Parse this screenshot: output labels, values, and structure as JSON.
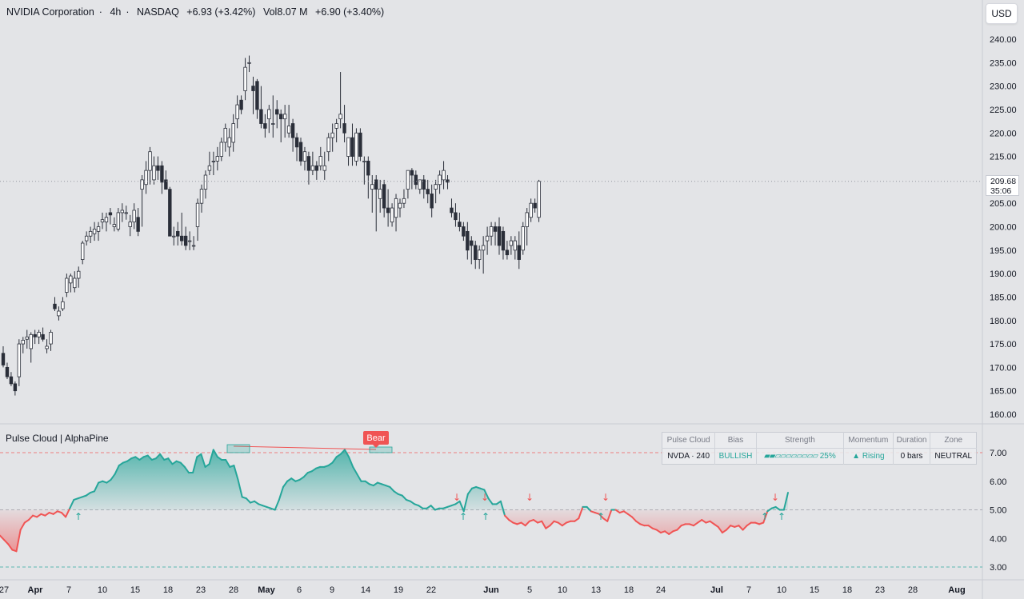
{
  "header": {
    "symbol": "NVIDIA Corporation",
    "interval": "4h",
    "exchange": "NASDAQ",
    "change": "+6.93 (+3.42%)",
    "volume_label": "Vol",
    "volume": "8.07 M",
    "volume_change": "+6.90 (+3.40%)",
    "separator": "·"
  },
  "currency": "USD",
  "last_price": "209.68",
  "countdown": "35:06",
  "indicator": {
    "title": "Pulse Cloud | AlphaPine",
    "bear_label": "Bear",
    "table": {
      "headers": [
        "Pulse Cloud",
        "Bias",
        "Strength",
        "Momentum",
        "Duration",
        "Zone"
      ],
      "symbol_cell": "NVDA · 240",
      "bias": "BULLISH",
      "strength_bar": "▰▰▱▱▱▱▱▱▱▱",
      "strength_pct": "25%",
      "momentum": "▲ Rising",
      "duration": "0 bars",
      "zone": "NEUTRAL"
    }
  },
  "colors": {
    "background": "#e3e4e7",
    "up_candle": "#ffffff",
    "down_candle": "#2a2e39",
    "bull": "#26a69a",
    "bear": "#f05454",
    "text": "#131722"
  },
  "chart_data": [
    {
      "type": "candlestick",
      "ylim": [
        158,
        245
      ],
      "yticks": [
        "160.00",
        "165.00",
        "170.00",
        "175.00",
        "180.00",
        "185.00",
        "190.00",
        "195.00",
        "200.00",
        "205.00",
        "210.00",
        "215.00",
        "220.00",
        "225.00",
        "230.00",
        "235.00",
        "240.00"
      ],
      "xticks": [
        "27",
        "Apr",
        "7",
        "10",
        "15",
        "18",
        "23",
        "28",
        "May",
        "6",
        "9",
        "14",
        "19",
        "22",
        "Jun",
        "5",
        "10",
        "13",
        "18",
        "24",
        "Jul",
        "7",
        "10",
        "15",
        "18",
        "23",
        "28",
        "Aug"
      ],
      "candles": [
        [
          173,
          174.5,
          170,
          170.5
        ],
        [
          170,
          171,
          167.5,
          168
        ],
        [
          168,
          169,
          166,
          166.5
        ],
        [
          166.5,
          167,
          164,
          165
        ],
        [
          168,
          176,
          166,
          175
        ],
        [
          175,
          176.5,
          173,
          175.8
        ],
        [
          176,
          178,
          174,
          176.5
        ],
        [
          174,
          177.5,
          171,
          177
        ],
        [
          177,
          178,
          175,
          176.5
        ],
        [
          176.5,
          178,
          175,
          177.5
        ],
        [
          177,
          178.5,
          175.5,
          176
        ],
        [
          174,
          176,
          173,
          174.5
        ],
        [
          175,
          178,
          173.5,
          177.5
        ],
        [
          183.5,
          185,
          182,
          182.5
        ],
        [
          181,
          183,
          180,
          182
        ],
        [
          182.5,
          185,
          182,
          184
        ],
        [
          186,
          190,
          185,
          189
        ],
        [
          188,
          190,
          186,
          189.5
        ],
        [
          187,
          190.5,
          186,
          189
        ],
        [
          189,
          191.5,
          187,
          190.5
        ],
        [
          193,
          197,
          192,
          196.5
        ],
        [
          197,
          199,
          196,
          198
        ],
        [
          198,
          200,
          196.5,
          199
        ],
        [
          198.5,
          201,
          197,
          199.5
        ],
        [
          199,
          201,
          197,
          200
        ],
        [
          201,
          203,
          199.5,
          201.5
        ],
        [
          201,
          203,
          199,
          202
        ],
        [
          203,
          204,
          200.5,
          202.5
        ],
        [
          200,
          202,
          199,
          200.5
        ],
        [
          199.5,
          204,
          199,
          203
        ],
        [
          203,
          205,
          201,
          203.5
        ],
        [
          203,
          204.5,
          201.5,
          203
        ],
        [
          200,
          202.5,
          198,
          201
        ],
        [
          201,
          205,
          199.5,
          203.5
        ],
        [
          202,
          204,
          198,
          199
        ],
        [
          208,
          211,
          200,
          210
        ],
        [
          209,
          214,
          207,
          212
        ],
        [
          212,
          217,
          209,
          216
        ],
        [
          210,
          215,
          209,
          213
        ],
        [
          213,
          215,
          210,
          212
        ],
        [
          213,
          214,
          207,
          209.5
        ],
        [
          210,
          212,
          208,
          208
        ],
        [
          208,
          208.5,
          198,
          198
        ],
        [
          198,
          200,
          196,
          198
        ],
        [
          199,
          201,
          196,
          198
        ],
        [
          198,
          203,
          196,
          197
        ],
        [
          198,
          200,
          195,
          196
        ],
        [
          197,
          199,
          195,
          197
        ],
        [
          196,
          198,
          195,
          196
        ],
        [
          200,
          206,
          197,
          205
        ],
        [
          205,
          209,
          203,
          208
        ],
        [
          208,
          212,
          206,
          211
        ],
        [
          212,
          216,
          211,
          213
        ],
        [
          214,
          216,
          211,
          214
        ],
        [
          214,
          217,
          212,
          215
        ],
        [
          215,
          219,
          214,
          218
        ],
        [
          218,
          222,
          216,
          221
        ],
        [
          217,
          221,
          215,
          219
        ],
        [
          218,
          224,
          216,
          222
        ],
        [
          223,
          228,
          221,
          226
        ],
        [
          227,
          228,
          224,
          225
        ],
        [
          229,
          236,
          227,
          234
        ],
        [
          235,
          236.5,
          233,
          235
        ],
        [
          230,
          232,
          224,
          229
        ],
        [
          231,
          231.5,
          223,
          225
        ],
        [
          225,
          230,
          221,
          222
        ],
        [
          222,
          224,
          219,
          221
        ],
        [
          223,
          226,
          220,
          225
        ],
        [
          222,
          228,
          219,
          222
        ],
        [
          225,
          227,
          221,
          224
        ],
        [
          224,
          225,
          218,
          223
        ],
        [
          223,
          226,
          219,
          224
        ],
        [
          220,
          226,
          219,
          221.5
        ],
        [
          222,
          223,
          216,
          219
        ],
        [
          219,
          220,
          214,
          217
        ],
        [
          218,
          219,
          213,
          214
        ],
        [
          214,
          217,
          212,
          216
        ],
        [
          215,
          216,
          209,
          212
        ],
        [
          212,
          216,
          211,
          213
        ],
        [
          213,
          214,
          210,
          212
        ],
        [
          213,
          217,
          212,
          215
        ],
        [
          212,
          216,
          210,
          213
        ],
        [
          216,
          220,
          214,
          219
        ],
        [
          219,
          222,
          216,
          220
        ],
        [
          221,
          223,
          218,
          222
        ],
        [
          223,
          233,
          221,
          224
        ],
        [
          222,
          226,
          218,
          220
        ],
        [
          215,
          219,
          213,
          219
        ],
        [
          219,
          222,
          213,
          215
        ],
        [
          214,
          221,
          213,
          220
        ],
        [
          220,
          221,
          214,
          215
        ],
        [
          214,
          215,
          209,
          214
        ],
        [
          214,
          215,
          206,
          211
        ],
        [
          208,
          211,
          203,
          209
        ],
        [
          210,
          211,
          199,
          208
        ],
        [
          206,
          210,
          203,
          208
        ],
        [
          209,
          210,
          202,
          204
        ],
        [
          204,
          208,
          200,
          203
        ],
        [
          201,
          205,
          200,
          204
        ],
        [
          202,
          207,
          199,
          206
        ],
        [
          204,
          206,
          202,
          205
        ],
        [
          205,
          208,
          204,
          206
        ],
        [
          208,
          212,
          206,
          212
        ],
        [
          212,
          212.5,
          208,
          211
        ],
        [
          211,
          212,
          208,
          209
        ],
        [
          208,
          210,
          207,
          210
        ],
        [
          210,
          211,
          206,
          208
        ],
        [
          208,
          210,
          205,
          207
        ],
        [
          207,
          209,
          202,
          204
        ],
        [
          208,
          210,
          205,
          209
        ],
        [
          209,
          212,
          207,
          211
        ],
        [
          210,
          214,
          208,
          212
        ],
        [
          210,
          211,
          208,
          209.5
        ],
        [
          204,
          206,
          202,
          203
        ],
        [
          203,
          205,
          200,
          201.5
        ],
        [
          201,
          203,
          199,
          200
        ],
        [
          200,
          201,
          197,
          198
        ],
        [
          199,
          201,
          193,
          195
        ],
        [
          197,
          198,
          192,
          196
        ],
        [
          196,
          197,
          191,
          193
        ],
        [
          193,
          196,
          191,
          195
        ],
        [
          195,
          198,
          190,
          196
        ],
        [
          197,
          200,
          194,
          198
        ],
        [
          198,
          201,
          196,
          200
        ],
        [
          200,
          201,
          196,
          199
        ],
        [
          200,
          202,
          194,
          196
        ],
        [
          199,
          200,
          193,
          195
        ],
        [
          195,
          197,
          193,
          194
        ],
        [
          196,
          198,
          194,
          197
        ],
        [
          195,
          198,
          193,
          197
        ],
        [
          196,
          199,
          191,
          193
        ],
        [
          195,
          201,
          194,
          200
        ],
        [
          200,
          204,
          196,
          203
        ],
        [
          202,
          206,
          201,
          205
        ],
        [
          205,
          206,
          203,
          204
        ],
        [
          202,
          210,
          201,
          209.68
        ]
      ]
    },
    {
      "type": "area",
      "name": "Pulse Cloud",
      "ylim": [
        2.7,
        7.7
      ],
      "yticks": [
        "3.00",
        "4.00",
        "5.00",
        "6.00",
        "7.00"
      ],
      "reference_lines": [
        7.0,
        5.0,
        3.0
      ],
      "values": [
        4.1,
        3.95,
        3.8,
        3.6,
        3.55,
        4.3,
        4.55,
        4.65,
        4.8,
        4.75,
        4.85,
        4.8,
        4.9,
        4.85,
        4.95,
        4.9,
        4.75,
        5.05,
        5.35,
        5.4,
        5.45,
        5.5,
        5.6,
        5.65,
        5.95,
        6.0,
        5.95,
        6.05,
        6.25,
        6.55,
        6.65,
        6.7,
        6.8,
        6.85,
        6.75,
        6.85,
        6.9,
        6.75,
        6.8,
        6.95,
        6.75,
        6.8,
        6.6,
        6.7,
        6.65,
        6.5,
        6.3,
        6.3,
        6.85,
        6.95,
        6.5,
        6.6,
        7.1,
        6.85,
        6.75,
        6.75,
        6.5,
        6.55,
        6.05,
        5.45,
        5.4,
        5.25,
        5.3,
        5.2,
        5.15,
        5.1,
        5.05,
        5.0,
        5.35,
        5.8,
        6.0,
        6.1,
        6.0,
        6.05,
        6.15,
        6.3,
        6.35,
        6.45,
        6.5,
        6.5,
        6.55,
        6.65,
        6.85,
        6.95,
        7.1,
        6.85,
        6.5,
        6.25,
        6.0,
        6.0,
        5.9,
        5.85,
        5.95,
        5.9,
        5.85,
        5.8,
        5.65,
        5.55,
        5.5,
        5.35,
        5.3,
        5.2,
        5.15,
        5.05,
        5.05,
        5.15,
        5.0,
        5.05,
        5.05,
        5.1,
        5.15,
        5.2,
        5.3,
        4.95,
        5.55,
        5.75,
        5.8,
        5.75,
        5.7,
        5.4,
        5.2,
        5.2,
        5.3,
        4.8,
        4.65,
        4.55,
        4.5,
        4.55,
        4.45,
        4.6,
        4.65,
        4.55,
        4.6,
        4.35,
        4.45,
        4.6,
        4.55,
        4.45,
        4.55,
        4.6,
        4.6,
        4.7,
        5.1,
        5.1,
        4.95,
        4.9,
        4.85,
        4.7,
        4.6,
        5.0,
        5.0,
        4.9,
        4.95,
        4.85,
        4.75,
        4.6,
        4.5,
        4.45,
        4.45,
        4.35,
        4.3,
        4.2,
        4.25,
        4.15,
        4.25,
        4.3,
        4.45,
        4.5,
        4.5,
        4.45,
        4.55,
        4.65,
        4.55,
        4.6,
        4.5,
        4.4,
        4.2,
        4.3,
        4.45,
        4.4,
        4.45,
        4.3,
        4.45,
        4.55,
        4.55,
        4.5,
        4.55,
        4.95,
        5.05,
        5.1,
        5.0,
        5.0,
        5.6
      ]
    }
  ]
}
